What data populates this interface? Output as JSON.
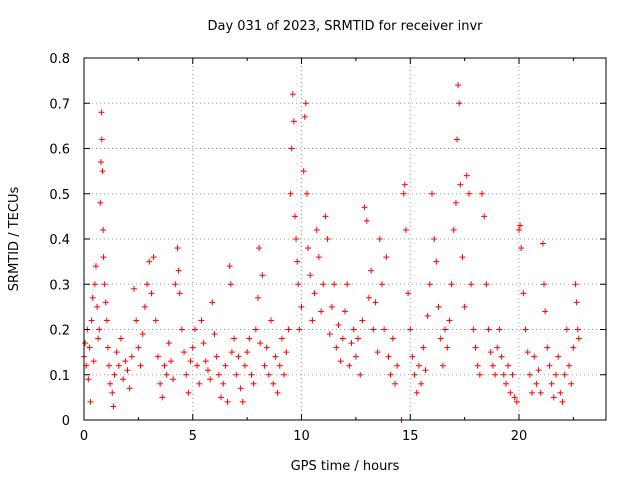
{
  "chart_data": {
    "type": "scatter",
    "title": "Day 031 of 2023, SRMTID for receiver invr",
    "xlabel": "GPS time / hours",
    "ylabel": "SRMTID / TECUs",
    "xlim": [
      0,
      24
    ],
    "ylim": [
      0,
      0.8
    ],
    "xticks": [
      0,
      5,
      10,
      15,
      20
    ],
    "xtick_labels": [
      "0",
      "5",
      "10",
      "15",
      "20"
    ],
    "yticks": [
      0,
      0.1,
      0.2,
      0.3,
      0.4,
      0.5,
      0.6,
      0.7,
      0.8
    ],
    "ytick_labels": [
      "0",
      "0.1",
      "0.2",
      "0.3",
      "0.4",
      "0.5",
      "0.6",
      "0.7",
      "0.8"
    ],
    "grid": true,
    "marker": "+",
    "series_color": "#ff0000",
    "series": [
      {
        "name": "SRMTID",
        "points": [
          [
            0.0,
            0.14
          ],
          [
            0.05,
            0.17
          ],
          [
            0.1,
            0.12
          ],
          [
            0.15,
            0.2
          ],
          [
            0.2,
            0.09
          ],
          [
            0.25,
            0.16
          ],
          [
            0.3,
            0.04
          ],
          [
            0.35,
            0.22
          ],
          [
            0.4,
            0.27
          ],
          [
            0.45,
            0.13
          ],
          [
            0.5,
            0.3
          ],
          [
            0.55,
            0.34
          ],
          [
            0.6,
            0.25
          ],
          [
            0.65,
            0.18
          ],
          [
            0.7,
            0.2
          ],
          [
            0.75,
            0.48
          ],
          [
            0.78,
            0.57
          ],
          [
            0.8,
            0.68
          ],
          [
            0.82,
            0.62
          ],
          [
            0.85,
            0.55
          ],
          [
            0.88,
            0.42
          ],
          [
            0.9,
            0.36
          ],
          [
            0.95,
            0.3
          ],
          [
            1.0,
            0.26
          ],
          [
            1.05,
            0.22
          ],
          [
            1.1,
            0.16
          ],
          [
            1.15,
            0.12
          ],
          [
            1.2,
            0.08
          ],
          [
            1.3,
            0.06
          ],
          [
            1.35,
            0.03
          ],
          [
            1.4,
            0.1
          ],
          [
            1.5,
            0.15
          ],
          [
            1.6,
            0.12
          ],
          [
            1.7,
            0.18
          ],
          [
            1.8,
            0.09
          ],
          [
            1.9,
            0.13
          ],
          [
            2.0,
            0.11
          ],
          [
            2.1,
            0.07
          ],
          [
            2.2,
            0.14
          ],
          [
            2.3,
            0.29
          ],
          [
            2.4,
            0.22
          ],
          [
            2.5,
            0.16
          ],
          [
            2.6,
            0.12
          ],
          [
            2.7,
            0.19
          ],
          [
            2.8,
            0.25
          ],
          [
            2.9,
            0.3
          ],
          [
            3.0,
            0.35
          ],
          [
            3.1,
            0.28
          ],
          [
            3.2,
            0.36
          ],
          [
            3.3,
            0.22
          ],
          [
            3.4,
            0.14
          ],
          [
            3.5,
            0.08
          ],
          [
            3.6,
            0.05
          ],
          [
            3.7,
            0.12
          ],
          [
            3.8,
            0.1
          ],
          [
            3.9,
            0.17
          ],
          [
            4.0,
            0.13
          ],
          [
            4.1,
            0.09
          ],
          [
            4.2,
            0.3
          ],
          [
            4.3,
            0.38
          ],
          [
            4.35,
            0.33
          ],
          [
            4.4,
            0.28
          ],
          [
            4.5,
            0.2
          ],
          [
            4.6,
            0.15
          ],
          [
            4.7,
            0.1
          ],
          [
            4.8,
            0.06
          ],
          [
            4.9,
            0.13
          ],
          [
            5.0,
            0.16
          ],
          [
            5.1,
            0.2
          ],
          [
            5.2,
            0.12
          ],
          [
            5.3,
            0.08
          ],
          [
            5.4,
            0.22
          ],
          [
            5.5,
            0.17
          ],
          [
            5.6,
            0.13
          ],
          [
            5.7,
            0.11
          ],
          [
            5.8,
            0.09
          ],
          [
            5.9,
            0.26
          ],
          [
            6.0,
            0.19
          ],
          [
            6.1,
            0.14
          ],
          [
            6.2,
            0.1
          ],
          [
            6.3,
            0.05
          ],
          [
            6.4,
            0.08
          ],
          [
            6.5,
            0.12
          ],
          [
            6.6,
            0.04
          ],
          [
            6.7,
            0.34
          ],
          [
            6.75,
            0.3
          ],
          [
            6.8,
            0.15
          ],
          [
            6.9,
            0.18
          ],
          [
            7.0,
            0.1
          ],
          [
            7.1,
            0.14
          ],
          [
            7.2,
            0.07
          ],
          [
            7.3,
            0.04
          ],
          [
            7.4,
            0.12
          ],
          [
            7.5,
            0.15
          ],
          [
            7.6,
            0.18
          ],
          [
            7.7,
            0.1
          ],
          [
            7.8,
            0.08
          ],
          [
            7.9,
            0.2
          ],
          [
            8.0,
            0.27
          ],
          [
            8.05,
            0.38
          ],
          [
            8.1,
            0.17
          ],
          [
            8.2,
            0.32
          ],
          [
            8.3,
            0.12
          ],
          [
            8.4,
            0.16
          ],
          [
            8.5,
            0.1
          ],
          [
            8.6,
            0.22
          ],
          [
            8.7,
            0.08
          ],
          [
            8.8,
            0.14
          ],
          [
            8.9,
            0.06
          ],
          [
            9.0,
            0.12
          ],
          [
            9.1,
            0.18
          ],
          [
            9.2,
            0.1
          ],
          [
            9.3,
            0.15
          ],
          [
            9.4,
            0.2
          ],
          [
            9.5,
            0.5
          ],
          [
            9.55,
            0.6
          ],
          [
            9.6,
            0.72
          ],
          [
            9.65,
            0.66
          ],
          [
            9.7,
            0.45
          ],
          [
            9.75,
            0.4
          ],
          [
            9.8,
            0.35
          ],
          [
            9.85,
            0.3
          ],
          [
            9.9,
            0.2
          ],
          [
            10.0,
            0.25
          ],
          [
            10.1,
            0.55
          ],
          [
            10.15,
            0.67
          ],
          [
            10.2,
            0.7
          ],
          [
            10.25,
            0.5
          ],
          [
            10.3,
            0.38
          ],
          [
            10.4,
            0.32
          ],
          [
            10.5,
            0.22
          ],
          [
            10.6,
            0.28
          ],
          [
            10.7,
            0.42
          ],
          [
            10.8,
            0.36
          ],
          [
            10.9,
            0.24
          ],
          [
            11.0,
            0.3
          ],
          [
            11.1,
            0.45
          ],
          [
            11.2,
            0.4
          ],
          [
            11.3,
            0.19
          ],
          [
            11.4,
            0.25
          ],
          [
            11.5,
            0.3
          ],
          [
            11.6,
            0.16
          ],
          [
            11.7,
            0.21
          ],
          [
            11.8,
            0.13
          ],
          [
            11.9,
            0.18
          ],
          [
            12.0,
            0.24
          ],
          [
            12.1,
            0.3
          ],
          [
            12.2,
            0.12
          ],
          [
            12.3,
            0.17
          ],
          [
            12.4,
            0.2
          ],
          [
            12.5,
            0.14
          ],
          [
            12.6,
            0.18
          ],
          [
            12.7,
            0.1
          ],
          [
            12.8,
            0.22
          ],
          [
            12.9,
            0.47
          ],
          [
            13.0,
            0.44
          ],
          [
            13.1,
            0.27
          ],
          [
            13.2,
            0.33
          ],
          [
            13.3,
            0.2
          ],
          [
            13.4,
            0.26
          ],
          [
            13.5,
            0.15
          ],
          [
            13.6,
            0.4
          ],
          [
            13.7,
            0.3
          ],
          [
            13.8,
            0.2
          ],
          [
            13.9,
            0.36
          ],
          [
            14.0,
            0.14
          ],
          [
            14.1,
            0.1
          ],
          [
            14.2,
            0.18
          ],
          [
            14.3,
            0.08
          ],
          [
            14.4,
            0.12
          ],
          [
            14.6,
            0.0
          ],
          [
            14.7,
            0.5
          ],
          [
            14.75,
            0.52
          ],
          [
            14.8,
            0.42
          ],
          [
            14.9,
            0.28
          ],
          [
            15.0,
            0.2
          ],
          [
            15.1,
            0.14
          ],
          [
            15.2,
            0.1
          ],
          [
            15.3,
            0.06
          ],
          [
            15.4,
            0.12
          ],
          [
            15.5,
            0.08
          ],
          [
            15.6,
            0.16
          ],
          [
            15.7,
            0.11
          ],
          [
            15.8,
            0.23
          ],
          [
            15.9,
            0.3
          ],
          [
            16.0,
            0.5
          ],
          [
            16.1,
            0.4
          ],
          [
            16.2,
            0.35
          ],
          [
            16.3,
            0.25
          ],
          [
            16.4,
            0.18
          ],
          [
            16.5,
            0.12
          ],
          [
            16.6,
            0.2
          ],
          [
            16.7,
            0.16
          ],
          [
            16.8,
            0.22
          ],
          [
            16.9,
            0.3
          ],
          [
            17.0,
            0.42
          ],
          [
            17.1,
            0.48
          ],
          [
            17.15,
            0.62
          ],
          [
            17.2,
            0.74
          ],
          [
            17.25,
            0.7
          ],
          [
            17.3,
            0.52
          ],
          [
            17.4,
            0.36
          ],
          [
            17.5,
            0.25
          ],
          [
            17.6,
            0.54
          ],
          [
            17.7,
            0.5
          ],
          [
            17.8,
            0.3
          ],
          [
            17.9,
            0.2
          ],
          [
            18.0,
            0.16
          ],
          [
            18.1,
            0.12
          ],
          [
            18.2,
            0.1
          ],
          [
            18.3,
            0.5
          ],
          [
            18.4,
            0.45
          ],
          [
            18.5,
            0.3
          ],
          [
            18.6,
            0.2
          ],
          [
            18.7,
            0.15
          ],
          [
            18.8,
            0.12
          ],
          [
            18.9,
            0.1
          ],
          [
            19.0,
            0.16
          ],
          [
            19.1,
            0.2
          ],
          [
            19.2,
            0.14
          ],
          [
            19.3,
            0.1
          ],
          [
            19.4,
            0.08
          ],
          [
            19.5,
            0.12
          ],
          [
            19.6,
            0.06
          ],
          [
            19.7,
            0.1
          ],
          [
            19.8,
            0.05
          ],
          [
            19.9,
            0.04
          ],
          [
            20.0,
            0.42
          ],
          [
            20.05,
            0.43
          ],
          [
            20.1,
            0.38
          ],
          [
            20.2,
            0.28
          ],
          [
            20.3,
            0.2
          ],
          [
            20.4,
            0.15
          ],
          [
            20.5,
            0.1
          ],
          [
            20.6,
            0.06
          ],
          [
            20.7,
            0.14
          ],
          [
            20.8,
            0.08
          ],
          [
            20.9,
            0.11
          ],
          [
            21.0,
            0.06
          ],
          [
            21.1,
            0.39
          ],
          [
            21.15,
            0.3
          ],
          [
            21.2,
            0.24
          ],
          [
            21.3,
            0.16
          ],
          [
            21.4,
            0.12
          ],
          [
            21.5,
            0.08
          ],
          [
            21.6,
            0.05
          ],
          [
            21.7,
            0.1
          ],
          [
            21.8,
            0.14
          ],
          [
            21.9,
            0.06
          ],
          [
            22.0,
            0.04
          ],
          [
            22.1,
            0.1
          ],
          [
            22.2,
            0.2
          ],
          [
            22.3,
            0.12
          ],
          [
            22.4,
            0.08
          ],
          [
            22.5,
            0.16
          ],
          [
            22.6,
            0.3
          ],
          [
            22.65,
            0.26
          ],
          [
            22.7,
            0.2
          ],
          [
            22.75,
            0.18
          ]
        ]
      }
    ]
  }
}
